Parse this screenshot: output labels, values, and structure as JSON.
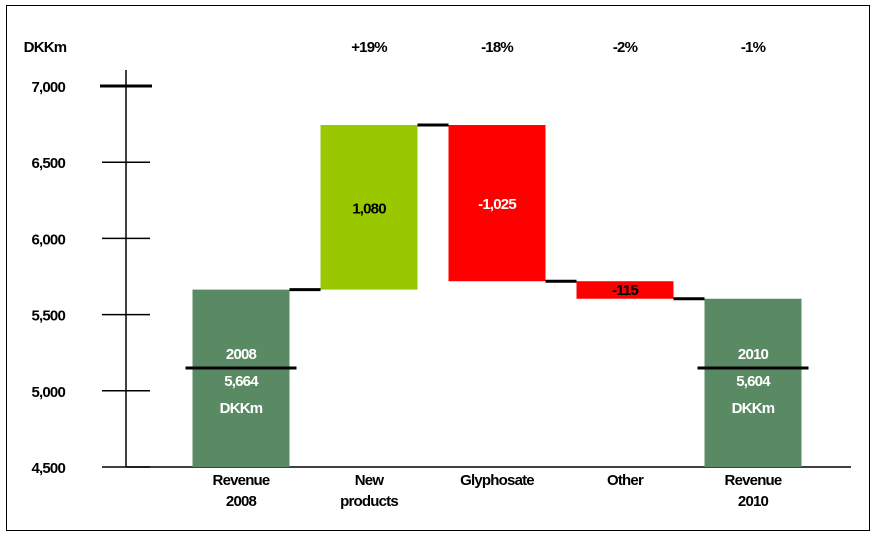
{
  "chart_data": {
    "type": "bar",
    "subtype": "waterfall",
    "ylabel": "DKKm",
    "ylim": [
      4500,
      7000
    ],
    "yticks": [
      "4,500",
      "5,000",
      "5,500",
      "6,000",
      "6,500",
      "7,000"
    ],
    "categories": [
      [
        "Revenue",
        "2008"
      ],
      [
        "New",
        "products"
      ],
      [
        "Glyphosate"
      ],
      [
        "Other"
      ],
      [
        "Revenue",
        "2010"
      ]
    ],
    "steps": [
      {
        "kind": "total",
        "value": 5664,
        "label_lines": [
          "2008",
          "5,664",
          "DKKm"
        ],
        "color": "#5a8a64"
      },
      {
        "kind": "delta",
        "value": 1080,
        "label": "1,080",
        "pct": "+19%",
        "color": "#9ac800"
      },
      {
        "kind": "delta",
        "value": -1025,
        "label": "-1,025",
        "pct": "-18%",
        "color": "#ff0000"
      },
      {
        "kind": "delta",
        "value": -115,
        "label": "-115",
        "pct": "-2%",
        "color": "#ff0000"
      },
      {
        "kind": "total",
        "value": 5604,
        "label_lines": [
          "2010",
          "5,604",
          "DKKm"
        ],
        "color": "#5a8a64"
      }
    ],
    "extra_header": [
      "-1%"
    ],
    "grid": false,
    "legend": "none"
  }
}
